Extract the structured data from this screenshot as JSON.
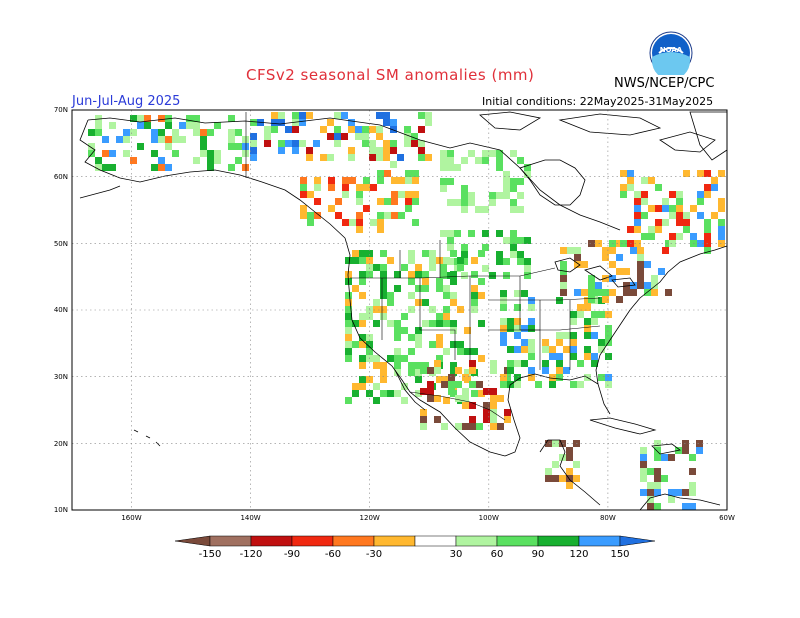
{
  "header": {
    "title": "CFSv2 seasonal SM anomalies (mm)",
    "agency": "NWS/NCEP/CPC",
    "season": "Jun-Jul-Aug 2025",
    "initial_conditions": "Initial conditions: 22May2025-31May2025",
    "logo_text": "NOAA"
  },
  "map": {
    "lat_labels": [
      "70N",
      "60N",
      "50N",
      "40N",
      "30N",
      "20N",
      "10N"
    ],
    "lon_labels": [
      "160W",
      "140W",
      "120W",
      "100W",
      "80W",
      "60W"
    ],
    "lat_range": [
      10,
      70
    ],
    "lon_range": [
      -170,
      -60
    ]
  },
  "colorbar": {
    "labels": [
      "-150",
      "-120",
      "-90",
      "-60",
      "-30",
      "30",
      "60",
      "90",
      "120",
      "150"
    ],
    "colors": [
      "#7a4a3a",
      "#a07060",
      "#c01010",
      "#f02810",
      "#ff7820",
      "#ffb830",
      "#ffffff",
      "#b0f4a0",
      "#5ae060",
      "#18b030",
      "#3a9cff",
      "#2070e0"
    ]
  }
}
